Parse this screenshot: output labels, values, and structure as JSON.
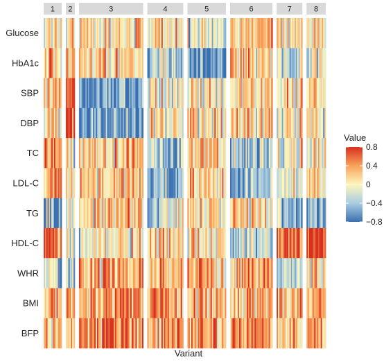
{
  "chart_data": {
    "type": "heatmap",
    "title": "",
    "xlabel": "Variant",
    "ylabel": "",
    "traits": [
      "Glucose",
      "HbA1c",
      "SBP",
      "DBP",
      "TC",
      "LDL-C",
      "TG",
      "HDL-C",
      "WHR",
      "BMI",
      "BFP"
    ],
    "clusters": [
      {
        "label": "1",
        "n_variants": 14,
        "mean_values": [
          0.05,
          0.35,
          0.2,
          0.15,
          0.45,
          0.45,
          -0.35,
          0.65,
          -0.1,
          0.3,
          0.2
        ]
      },
      {
        "label": "2",
        "n_variants": 7,
        "mean_values": [
          0.1,
          0.3,
          0.65,
          0.55,
          0.05,
          0.05,
          0.05,
          0.05,
          -0.45,
          0.2,
          0.2
        ]
      },
      {
        "label": "3",
        "n_variants": 50,
        "mean_values": [
          0.1,
          0.15,
          -0.65,
          -0.6,
          0.2,
          0.2,
          0.05,
          0.0,
          0.35,
          0.5,
          0.5
        ]
      },
      {
        "label": "4",
        "n_variants": 28,
        "mean_values": [
          0.05,
          -0.4,
          0.0,
          0.0,
          -0.4,
          -0.45,
          -0.3,
          0.15,
          0.2,
          0.45,
          0.35
        ]
      },
      {
        "label": "5",
        "n_variants": 30,
        "mean_values": [
          -0.15,
          -0.65,
          0.05,
          0.05,
          0.1,
          0.1,
          0.05,
          0.1,
          0.35,
          0.3,
          0.4
        ]
      },
      {
        "label": "6",
        "n_variants": 33,
        "mean_values": [
          0.2,
          0.2,
          0.15,
          0.15,
          -0.45,
          -0.45,
          0.1,
          -0.3,
          0.3,
          0.35,
          0.4
        ]
      },
      {
        "label": "7",
        "n_variants": 20,
        "mean_values": [
          0.1,
          -0.25,
          0.05,
          0.0,
          0.0,
          -0.15,
          -0.55,
          0.6,
          -0.3,
          0.25,
          0.25
        ]
      },
      {
        "label": "8",
        "n_variants": 15,
        "mean_values": [
          0.05,
          -0.1,
          0.1,
          0.1,
          0.15,
          0.1,
          -0.6,
          0.75,
          0.05,
          0.3,
          0.4
        ]
      }
    ],
    "legend": {
      "title": "Value",
      "min": -0.8,
      "max": 0.8,
      "ticks": [
        0.8,
        0.4,
        0,
        -0.4,
        -0.8
      ],
      "tick_labels": [
        "0.8",
        "0.4",
        "0",
        "−0.4",
        "−0.8"
      ],
      "placement": "right"
    },
    "colorscale": {
      "stops": [
        -0.8,
        -0.4,
        0,
        0.4,
        0.8
      ],
      "colors": [
        "#3b6fb0",
        "#a9cde0",
        "#fdf6bd",
        "#f9a25a",
        "#d7301f"
      ]
    },
    "facet_strip_color": "#d9d9d9"
  }
}
